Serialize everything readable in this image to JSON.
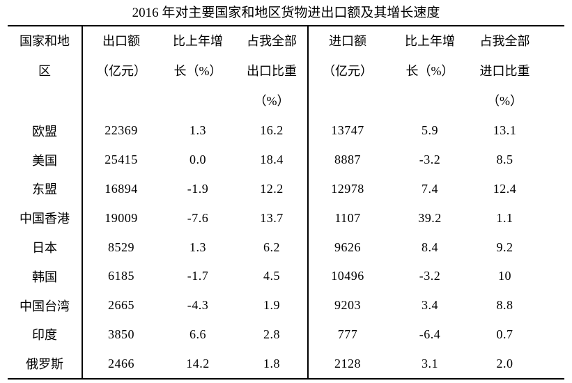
{
  "chart_data": {
    "type": "table",
    "title": "2016 年对主要国家和地区货物进出口额及其增长速度",
    "columns": [
      "国家和地区",
      "出口额（亿元）",
      "比上年增长（%）",
      "占我全部出口比重（%）",
      "进口额（亿元）",
      "比上年增长（%）",
      "占我全部进口比重（%）"
    ],
    "header_lines": [
      [
        "国家和地",
        "区"
      ],
      [
        "出口额",
        "（亿元）"
      ],
      [
        "比上年增",
        "长（%）"
      ],
      [
        "占我全部",
        "出口比重",
        "（%）"
      ],
      [
        "进口额",
        "（亿元）"
      ],
      [
        "比上年增",
        "长（%）"
      ],
      [
        "占我全部",
        "进口比重",
        "（%）"
      ]
    ],
    "rows": [
      [
        "欧盟",
        "22369",
        "1.3",
        "16.2",
        "13747",
        "5.9",
        "13.1"
      ],
      [
        "美国",
        "25415",
        "0.0",
        "18.4",
        "8887",
        "-3.2",
        "8.5"
      ],
      [
        "东盟",
        "16894",
        "-1.9",
        "12.2",
        "12978",
        "7.4",
        "12.4"
      ],
      [
        "中国香港",
        "19009",
        "-7.6",
        "13.7",
        "1107",
        "39.2",
        "1.1"
      ],
      [
        "日本",
        "8529",
        "1.3",
        "6.2",
        "9626",
        "8.4",
        "9.2"
      ],
      [
        "韩国",
        "6185",
        "-1.7",
        "4.5",
        "10496",
        "-3.2",
        "10"
      ],
      [
        "中国台湾",
        "2665",
        "-4.3",
        "1.9",
        "9203",
        "3.4",
        "8.8"
      ],
      [
        "印度",
        "3850",
        "6.6",
        "2.8",
        "777",
        "-6.4",
        "0.7"
      ],
      [
        "俄罗斯",
        "2466",
        "14.2",
        "1.8",
        "2128",
        "3.1",
        "2.0"
      ]
    ],
    "layout": {
      "legend": "none",
      "grid": "top-rule, bottom-rule, vertical rule after column 1 and column 4",
      "sections": [
        "export (columns 2-4)",
        "import (columns 5-7)"
      ]
    }
  },
  "colors": {
    "background": "#ffffff",
    "text": "#000000",
    "rule": "#000000"
  }
}
